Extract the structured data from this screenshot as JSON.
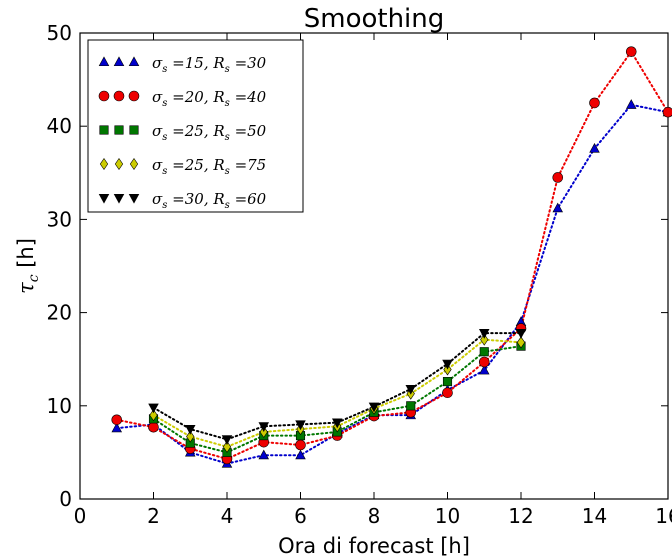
{
  "chart_data": {
    "type": "line",
    "title": "Smoothing",
    "xlabel": "Ora di forecast [h]",
    "ylabel": "τ",
    "ylabel_sub": "c",
    "ylabel_unit": " [h]",
    "xlim": [
      0,
      16
    ],
    "ylim": [
      0,
      50
    ],
    "xticks": [
      0,
      2,
      4,
      6,
      8,
      10,
      12,
      14,
      16
    ],
    "yticks": [
      0,
      10,
      20,
      30,
      40,
      50
    ],
    "grid": false,
    "legend_position": "top-left",
    "series": [
      {
        "name": "σs =15, Rs =30",
        "label_sigma": "15",
        "label_R": "30",
        "color": "#0000cc",
        "marker": "triangle-up",
        "line_style": "dotted",
        "x": [
          1,
          2,
          3,
          4,
          5,
          6,
          7,
          8,
          9,
          10,
          11,
          12,
          13,
          14,
          15,
          16
        ],
        "y": [
          7.6,
          8.0,
          5.0,
          3.8,
          4.7,
          4.7,
          7.0,
          9.0,
          9.0,
          11.7,
          13.8,
          19.0,
          31.2,
          37.6,
          42.3,
          41.5
        ]
      },
      {
        "name": "σs =20, Rs =40",
        "label_sigma": "20",
        "label_R": "40",
        "color": "#ee0000",
        "marker": "circle",
        "line_style": "dotted",
        "x": [
          1,
          2,
          3,
          4,
          5,
          6,
          7,
          8,
          9,
          10,
          11,
          12,
          13,
          14,
          15,
          16
        ],
        "y": [
          8.5,
          7.7,
          5.4,
          4.3,
          6.1,
          5.8,
          6.8,
          8.9,
          9.3,
          11.4,
          14.7,
          18.3,
          34.5,
          42.5,
          48.0,
          41.5
        ]
      },
      {
        "name": "σs =25, Rs =50",
        "label_sigma": "25",
        "label_R": "50",
        "color": "#007700",
        "marker": "square",
        "line_style": "dotted",
        "x": [
          2,
          3,
          4,
          5,
          6,
          7,
          8,
          9,
          10,
          11,
          12
        ],
        "y": [
          8.6,
          6.0,
          5.0,
          6.8,
          6.8,
          7.2,
          9.3,
          10.0,
          12.6,
          15.8,
          16.4
        ]
      },
      {
        "name": "σs =25, Rs =75",
        "label_sigma": "25",
        "label_R": "75",
        "color": "#cccc00",
        "marker": "diamond",
        "line_style": "dotted",
        "x": [
          2,
          3,
          4,
          5,
          6,
          7,
          8,
          9,
          10,
          11,
          12
        ],
        "y": [
          9.0,
          6.7,
          5.6,
          7.2,
          7.5,
          7.8,
          9.7,
          11.3,
          13.9,
          17.1,
          16.8
        ]
      },
      {
        "name": "σs =30, Rs =60",
        "label_sigma": "30",
        "label_R": "60",
        "color": "#000000",
        "marker": "triangle-down",
        "line_style": "dotted",
        "x": [
          2,
          3,
          4,
          5,
          6,
          7,
          8,
          9,
          10,
          11,
          12
        ],
        "y": [
          9.8,
          7.5,
          6.4,
          7.8,
          8.0,
          8.2,
          9.9,
          11.8,
          14.5,
          17.8,
          17.8
        ]
      }
    ]
  }
}
